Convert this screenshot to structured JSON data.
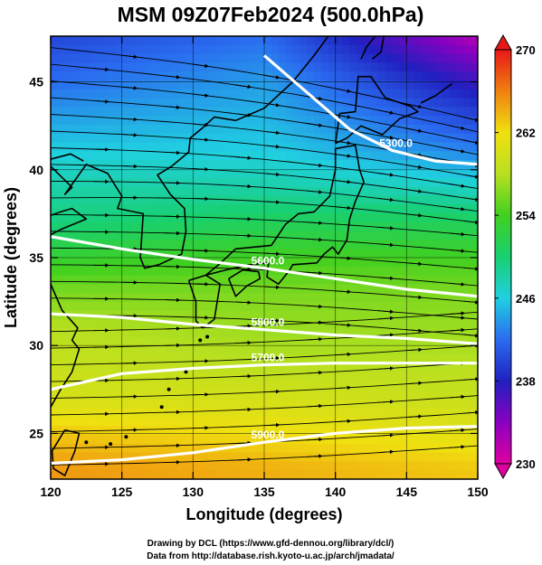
{
  "chart_data": {
    "type": "heatmap",
    "title": "MSM 09Z07Feb2024 (500.0hPa)",
    "xlabel": "Longitude (degrees)",
    "ylabel": "Latitude  (degrees)",
    "xlim": [
      120,
      150
    ],
    "ylim": [
      22.4,
      47.6
    ],
    "x_ticks": [
      120,
      125,
      130,
      135,
      140,
      145,
      150
    ],
    "x_tick_labels": [
      "120",
      "125",
      "130",
      "135",
      "140",
      "145",
      "150"
    ],
    "y_ticks": [
      25,
      30,
      35,
      40,
      45
    ],
    "y_tick_labels": [
      "25",
      "30",
      "35",
      "40",
      "45"
    ],
    "colorbar": {
      "min": 230,
      "max": 270,
      "ticks": [
        230,
        238,
        246,
        254,
        262,
        270
      ],
      "tick_labels": [
        "230",
        "238",
        "246",
        "254",
        "262",
        "270"
      ]
    },
    "temperature_field_K": {
      "lat_samples": [
        47.6,
        45,
        43,
        41,
        39,
        37,
        35,
        33,
        31,
        29,
        27,
        25,
        23
      ],
      "lon_west_120": [
        240,
        242,
        244,
        246,
        248,
        249.5,
        253,
        256,
        258,
        259,
        260,
        263,
        265
      ],
      "lon_mid_135": [
        242,
        244,
        245,
        246,
        248,
        251,
        254,
        256,
        257,
        258,
        260,
        262,
        264
      ],
      "lon_east_150": [
        232,
        237,
        240,
        243,
        247,
        251,
        254,
        256,
        257,
        258,
        259,
        261,
        263
      ]
    },
    "geopotential_height_contours_m": [
      {
        "label": "5300.0",
        "lon": [
          135,
          138,
          141,
          144,
          147,
          150
        ],
        "lat": [
          46.5,
          44.4,
          42.3,
          41.1,
          40.5,
          40.3
        ]
      },
      {
        "label": "5600.0",
        "lon": [
          120,
          125,
          130,
          135,
          140,
          145,
          150
        ],
        "lat": [
          36.2,
          35.5,
          34.9,
          34.4,
          33.8,
          33.2,
          32.8
        ]
      },
      {
        "label": "5800.0",
        "lon": [
          120,
          125,
          130,
          135,
          140,
          145,
          150
        ],
        "lat": [
          31.8,
          31.6,
          31.2,
          30.9,
          30.6,
          30.4,
          30.1
        ]
      },
      {
        "label": "5700.0",
        "lon": [
          120,
          125,
          130,
          135,
          140,
          145,
          150
        ],
        "lat": [
          27.5,
          28.4,
          28.7,
          28.9,
          29.0,
          29.0,
          29.0
        ]
      },
      {
        "label": "5900.0",
        "lon": [
          120,
          125,
          130,
          135,
          140,
          145,
          150
        ],
        "lat": [
          23.3,
          23.5,
          23.9,
          24.5,
          25.0,
          25.3,
          25.4
        ]
      }
    ],
    "wind": "streamlines, west to east",
    "grid": true,
    "legend": "colorbar right"
  },
  "credits": {
    "line1": "Drawing by DCL (https://www.gfd-dennou.org/library/dcl/)",
    "line2": "Data from http://database.rish.kyoto-u.ac.jp/arch/jmadata/"
  },
  "colors": {
    "cold": "#7a00a8",
    "cool": "#2a3cc8",
    "mid": "#18c87e",
    "warm": "#e88a10",
    "contour": "#ffffff",
    "coast": "#000000"
  }
}
